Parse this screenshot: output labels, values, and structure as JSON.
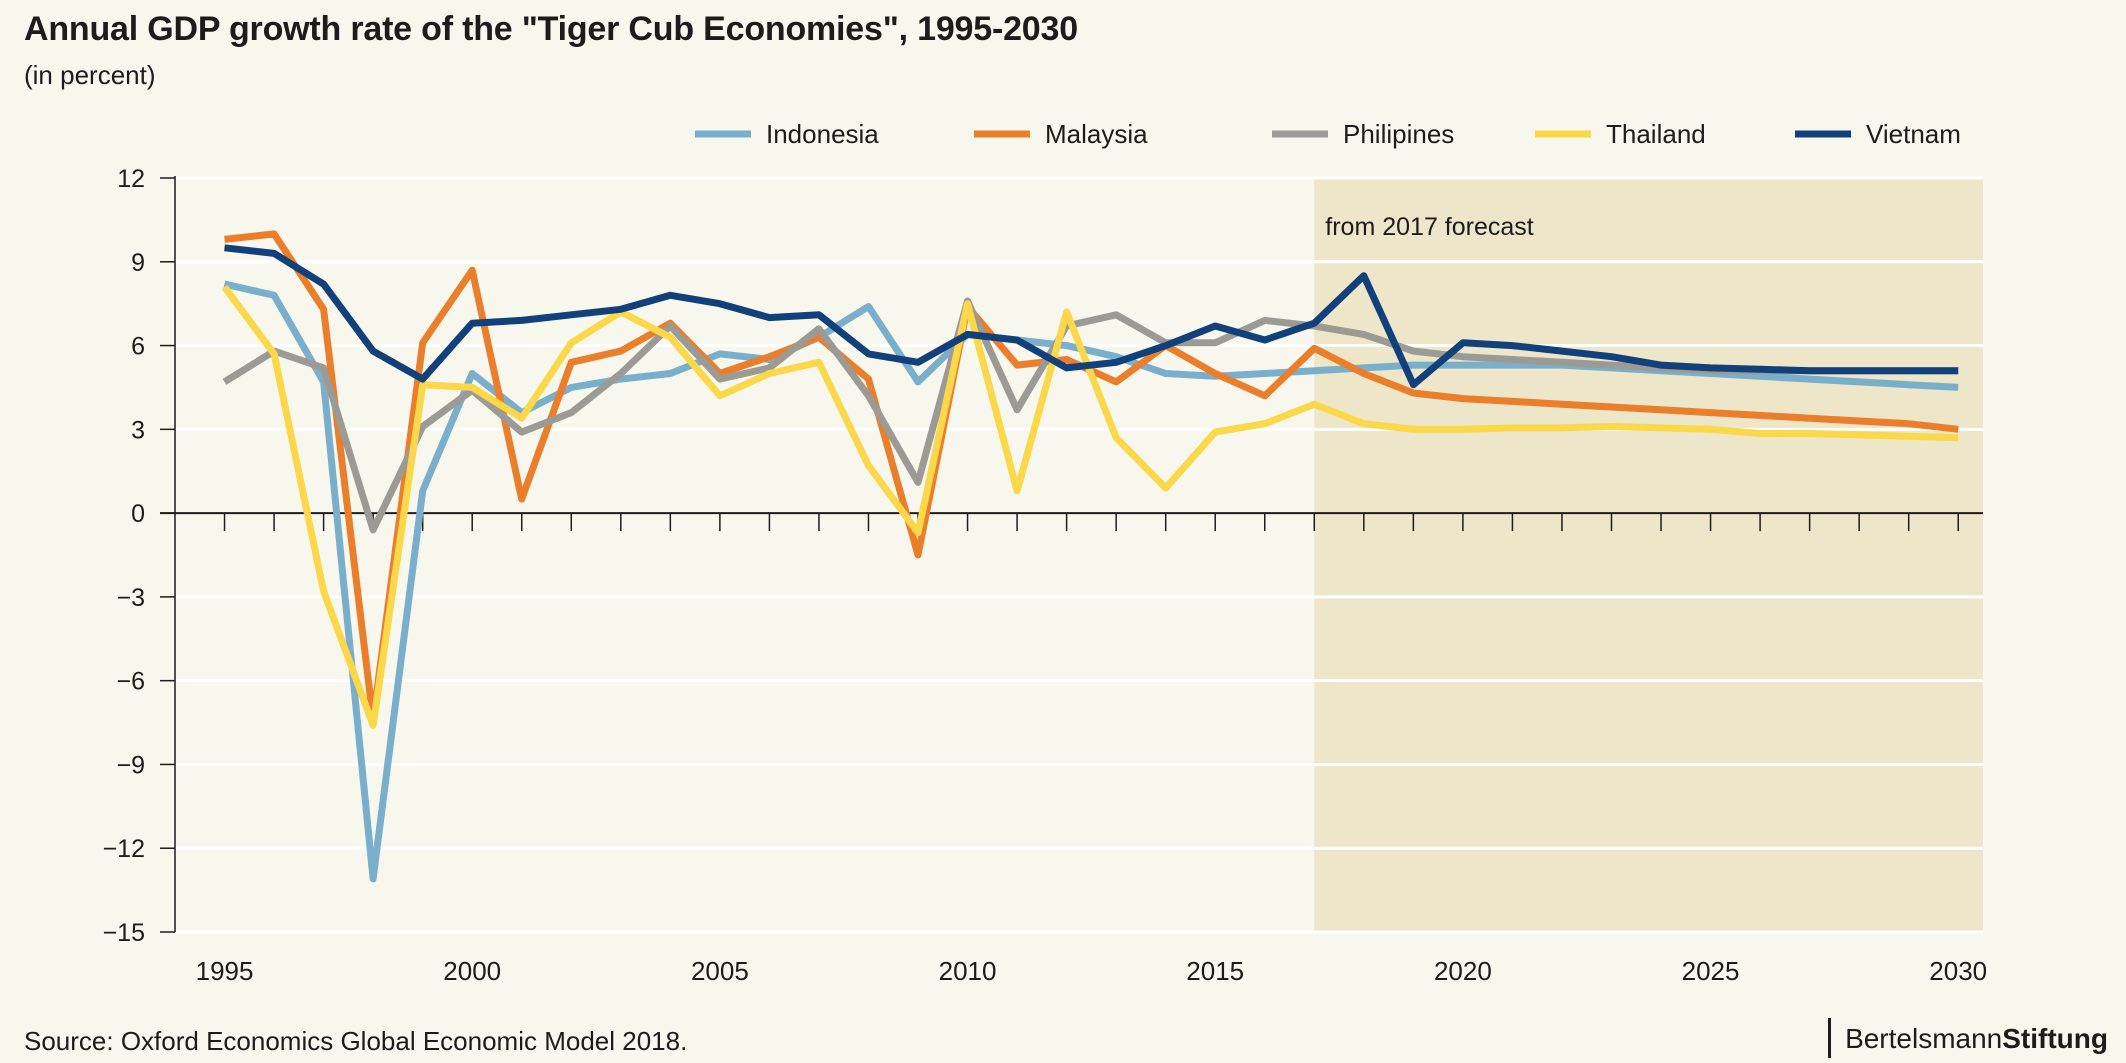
{
  "chart_data": {
    "type": "line",
    "title": "Annual GDP growth rate of the \"Tiger Cub Economies\", 1995-2030",
    "subtitle": "(in percent)",
    "annotation": "from 2017 forecast",
    "forecast_start": 2017,
    "x": [
      1995,
      1996,
      1997,
      1998,
      1999,
      2000,
      2001,
      2002,
      2003,
      2004,
      2005,
      2006,
      2007,
      2008,
      2009,
      2010,
      2011,
      2012,
      2013,
      2014,
      2015,
      2016,
      2017,
      2018,
      2019,
      2020,
      2021,
      2022,
      2023,
      2024,
      2025,
      2026,
      2027,
      2028,
      2029,
      2030
    ],
    "xlim": [
      1994,
      2030.5
    ],
    "ylim": [
      -15,
      12
    ],
    "x_ticks": [
      "1995",
      "2000",
      "2005",
      "2010",
      "2015",
      "2020",
      "2025",
      "2030"
    ],
    "y_ticks": [
      "12",
      "9",
      "6",
      "3",
      "0",
      "−3",
      "−6",
      "−9",
      "−12",
      "−15"
    ],
    "grid": "horizontal",
    "legend_position": "top",
    "series": [
      {
        "name": "Indonesia",
        "color": "#7aafcc",
        "values": [
          8.2,
          7.8,
          4.7,
          -13.1,
          0.8,
          5.0,
          3.6,
          4.5,
          4.8,
          5.0,
          5.7,
          5.5,
          6.3,
          7.4,
          4.7,
          6.4,
          6.2,
          6.0,
          5.6,
          5.0,
          4.9,
          5.0,
          5.1,
          5.2,
          5.3,
          5.3,
          5.3,
          5.3,
          5.2,
          5.1,
          5.0,
          4.9,
          4.8,
          4.7,
          4.6,
          4.5
        ]
      },
      {
        "name": "Malaysia",
        "color": "#ea7e2a",
        "values": [
          9.8,
          10.0,
          7.3,
          -7.4,
          6.1,
          8.7,
          0.5,
          5.4,
          5.8,
          6.8,
          5.0,
          5.6,
          6.3,
          4.8,
          -1.5,
          7.4,
          5.3,
          5.5,
          4.7,
          6.0,
          5.0,
          4.2,
          5.9,
          5.0,
          4.3,
          4.1,
          4.0,
          3.9,
          3.8,
          3.7,
          3.6,
          3.5,
          3.4,
          3.3,
          3.2,
          3.0
        ]
      },
      {
        "name": "Philipines",
        "color": "#9c9a95",
        "values": [
          4.7,
          5.8,
          5.2,
          -0.6,
          3.1,
          4.4,
          2.9,
          3.6,
          5.0,
          6.7,
          4.8,
          5.2,
          6.6,
          4.2,
          1.1,
          7.6,
          3.7,
          6.7,
          7.1,
          6.1,
          6.1,
          6.9,
          6.7,
          6.4,
          5.8,
          5.6,
          5.5,
          5.4,
          5.3,
          5.2,
          5.1,
          5.1,
          5.1,
          5.1,
          5.1,
          5.1
        ]
      },
      {
        "name": "Thailand",
        "color": "#fbd74a",
        "values": [
          8.1,
          5.7,
          -2.8,
          -7.6,
          4.6,
          4.5,
          3.4,
          6.1,
          7.2,
          6.3,
          4.2,
          5.0,
          5.4,
          1.7,
          -0.7,
          7.5,
          0.8,
          7.2,
          2.7,
          0.9,
          2.9,
          3.2,
          3.9,
          3.2,
          3.0,
          3.0,
          3.05,
          3.05,
          3.1,
          3.05,
          3.0,
          2.85,
          2.85,
          2.8,
          2.75,
          2.7
        ]
      },
      {
        "name": "Vietnam",
        "color": "#12407a",
        "values": [
          9.5,
          9.3,
          8.2,
          5.8,
          4.8,
          6.8,
          6.9,
          7.1,
          7.3,
          7.8,
          7.5,
          7.0,
          7.1,
          5.7,
          5.4,
          6.4,
          6.2,
          5.2,
          5.4,
          6.0,
          6.7,
          6.2,
          6.8,
          8.5,
          4.6,
          6.1,
          6.0,
          5.8,
          5.6,
          5.3,
          5.2,
          5.15,
          5.1,
          5.1,
          5.1,
          5.1
        ]
      }
    ],
    "source": "Source: Oxford Economics Global Economic Model 2018.",
    "logo_light": "Bertelsmann",
    "logo_bold": "Stiftung"
  }
}
